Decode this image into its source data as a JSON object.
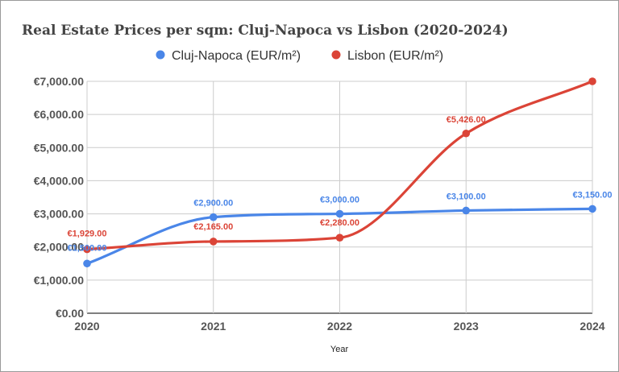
{
  "chart_data": {
    "type": "line",
    "title": "Real Estate Prices per sqm: Cluj-Napoca vs Lisbon (2020-2024)",
    "xlabel": "Year",
    "ylabel": "",
    "categories": [
      "2020",
      "2021",
      "2022",
      "2023",
      "2024"
    ],
    "y_ticks": [
      "€0.00",
      "€1,000.00",
      "€2,000.00",
      "€3,000.00",
      "€4,000.00",
      "€5,000.00",
      "€6,000.00",
      "€7,000.00"
    ],
    "ylim": [
      0,
      7000
    ],
    "grid": true,
    "smooth": true,
    "legend_position": "top",
    "series": [
      {
        "name": "Cluj-Napoca (EUR/m²)",
        "color": "#4a86e8",
        "values": [
          1500,
          2900,
          3000,
          3100,
          3150
        ],
        "labels": [
          "€1,500.00",
          "€2,900.00",
          "€3,000.00",
          "€3,100.00",
          "€3,150.00"
        ]
      },
      {
        "name": "Lisbon (EUR/m²)",
        "color": "#db4437",
        "values": [
          1929,
          2165,
          2280,
          5426,
          7000
        ],
        "labels": [
          "€1,929.00",
          "€2,165.00",
          "€2,280.00",
          "€5,426.00",
          ""
        ]
      }
    ]
  }
}
